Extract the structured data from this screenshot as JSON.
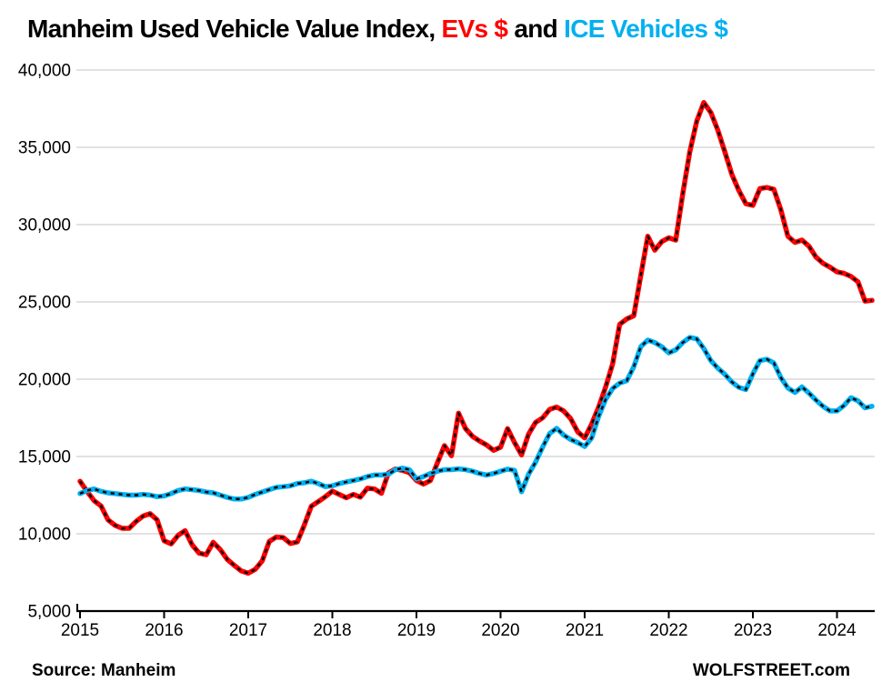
{
  "title": {
    "part1": "Manheim Used Vehicle Value Index, ",
    "ev_label": "EVs $",
    "part2": " and ",
    "ice_label": "ICE Vehicles $"
  },
  "footer": {
    "source": "Source: Manheim",
    "site": "WOLFSTREET.com"
  },
  "colors": {
    "ev": "#ff0000",
    "ice": "#00b0f0",
    "dash_overlay": "#000000",
    "grid": "#d9d9d9",
    "axis": "#000000",
    "text": "#000000"
  },
  "chart_data": {
    "type": "line",
    "title": "Manheim Used Vehicle Value Index, EVs $ and ICE Vehicles $",
    "x_unit": "month",
    "x_start": "2015-01",
    "x_end": "2024-06",
    "x_tick_labels": [
      "2015",
      "2016",
      "2017",
      "2018",
      "2019",
      "2020",
      "2021",
      "2022",
      "2023",
      "2024"
    ],
    "y_ticks": [
      5000,
      10000,
      15000,
      20000,
      25000,
      30000,
      35000,
      40000
    ],
    "ylim": [
      5000,
      40000
    ],
    "grid": "horizontal",
    "legend_position": "in-title",
    "line_style": "thick colored line with black dashed overlay",
    "series": [
      {
        "name": "EVs $",
        "color_key": "ev",
        "values": [
          13400,
          12750,
          12150,
          11800,
          10900,
          10550,
          10350,
          10350,
          10800,
          11150,
          11300,
          10900,
          9550,
          9350,
          9900,
          10200,
          9280,
          8750,
          8650,
          9450,
          8980,
          8350,
          7960,
          7600,
          7450,
          7700,
          8250,
          9500,
          9790,
          9760,
          9370,
          9470,
          10570,
          11780,
          12080,
          12400,
          12760,
          12550,
          12330,
          12550,
          12370,
          12950,
          12900,
          12620,
          13940,
          14190,
          14100,
          13950,
          13450,
          13220,
          13450,
          14600,
          15700,
          15050,
          17800,
          16800,
          16300,
          16000,
          15750,
          15400,
          15600,
          16800,
          15900,
          15100,
          16450,
          17200,
          17500,
          18050,
          18200,
          17950,
          17450,
          16600,
          16200,
          17100,
          18200,
          19500,
          21000,
          23550,
          23900,
          24100,
          26700,
          29250,
          28350,
          28900,
          29150,
          29000,
          32000,
          34700,
          36700,
          37900,
          37250,
          36100,
          34700,
          33250,
          32200,
          31350,
          31250,
          32330,
          32400,
          32280,
          30950,
          29250,
          28850,
          29000,
          28600,
          27900,
          27500,
          27250,
          26950,
          26850,
          26650,
          26300,
          25050,
          25100
        ]
      },
      {
        "name": "ICE Vehicles $",
        "color_key": "ice",
        "values": [
          12600,
          12800,
          12900,
          12750,
          12650,
          12600,
          12550,
          12500,
          12500,
          12550,
          12500,
          12400,
          12450,
          12600,
          12800,
          12900,
          12850,
          12800,
          12700,
          12650,
          12500,
          12350,
          12250,
          12250,
          12350,
          12550,
          12700,
          12850,
          13000,
          13050,
          13100,
          13250,
          13300,
          13400,
          13250,
          13050,
          13100,
          13250,
          13350,
          13450,
          13550,
          13700,
          13800,
          13800,
          13850,
          14150,
          14250,
          14150,
          13550,
          13700,
          13900,
          14050,
          14150,
          14150,
          14200,
          14150,
          14050,
          13900,
          13800,
          13900,
          14050,
          14180,
          14100,
          12720,
          13850,
          14630,
          15610,
          16490,
          16820,
          16390,
          16100,
          15900,
          15650,
          16200,
          17600,
          18700,
          19400,
          19750,
          19900,
          20800,
          22100,
          22530,
          22370,
          22100,
          21700,
          21900,
          22370,
          22700,
          22610,
          21980,
          21200,
          20710,
          20310,
          19820,
          19470,
          19330,
          20350,
          21200,
          21290,
          21050,
          20100,
          19430,
          19140,
          19500,
          19100,
          18650,
          18250,
          17950,
          17950,
          18300,
          18800,
          18600,
          18150,
          18250
        ]
      }
    ]
  }
}
